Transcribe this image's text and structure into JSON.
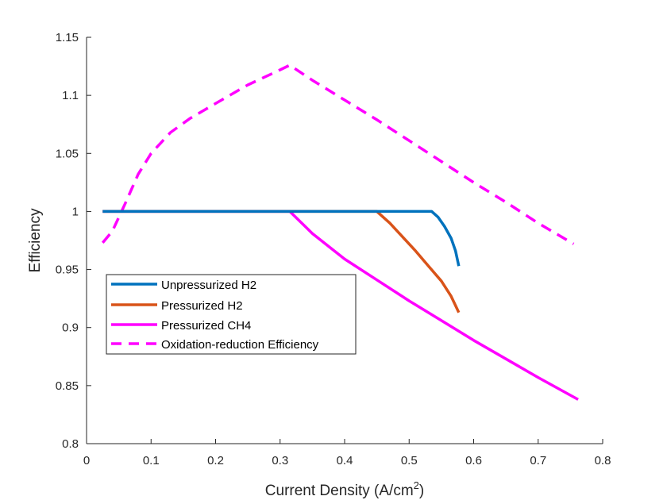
{
  "chart_data": {
    "type": "line",
    "title": "",
    "xlabel_main": "Current Density (A/cm",
    "xlabel_sup": "2",
    "xlabel_close": ")",
    "ylabel": "Efficiency",
    "xlim": [
      0,
      0.8
    ],
    "ylim": [
      0.8,
      1.15
    ],
    "x_ticks": [
      "0",
      "0.1",
      "0.2",
      "0.3",
      "0.4",
      "0.5",
      "0.6",
      "0.7",
      "0.8"
    ],
    "y_ticks": [
      "0.8",
      "0.85",
      "0.9",
      "0.95",
      "1",
      "1.05",
      "1.1",
      "1.15"
    ],
    "x_tick_values": [
      0,
      0.1,
      0.2,
      0.3,
      0.4,
      0.5,
      0.6,
      0.7,
      0.8
    ],
    "y_tick_values": [
      0.8,
      0.85,
      0.9,
      0.95,
      1.0,
      1.05,
      1.1,
      1.15
    ],
    "grid": false,
    "legend_position": "center-left",
    "series": [
      {
        "name": "Unpressurized H2",
        "color": "#0072BD",
        "dash": "solid",
        "points": [
          [
            0.025,
            1.0
          ],
          [
            0.535,
            1.0
          ],
          [
            0.545,
            0.995
          ],
          [
            0.555,
            0.987
          ],
          [
            0.565,
            0.977
          ],
          [
            0.572,
            0.966
          ],
          [
            0.577,
            0.953
          ]
        ]
      },
      {
        "name": "Pressurized H2",
        "color": "#D95319",
        "dash": "solid",
        "points": [
          [
            0.025,
            1.0
          ],
          [
            0.45,
            1.0
          ],
          [
            0.47,
            0.99
          ],
          [
            0.49,
            0.978
          ],
          [
            0.51,
            0.966
          ],
          [
            0.53,
            0.953
          ],
          [
            0.55,
            0.94
          ],
          [
            0.565,
            0.927
          ],
          [
            0.577,
            0.913
          ]
        ]
      },
      {
        "name": "Pressurized CH4",
        "color": "#FF00FF",
        "dash": "solid",
        "points": [
          [
            0.025,
            1.0
          ],
          [
            0.315,
            1.0
          ],
          [
            0.35,
            0.981
          ],
          [
            0.4,
            0.959
          ],
          [
            0.45,
            0.941
          ],
          [
            0.5,
            0.923
          ],
          [
            0.55,
            0.906
          ],
          [
            0.6,
            0.889
          ],
          [
            0.65,
            0.873
          ],
          [
            0.7,
            0.857
          ],
          [
            0.762,
            0.838
          ]
        ]
      },
      {
        "name": "Oxidation-reduction Efficiency",
        "color": "#FF00FF",
        "dash": "dashed",
        "points": [
          [
            0.025,
            0.973
          ],
          [
            0.04,
            0.983
          ],
          [
            0.06,
            1.007
          ],
          [
            0.08,
            1.032
          ],
          [
            0.1,
            1.05
          ],
          [
            0.13,
            1.068
          ],
          [
            0.16,
            1.08
          ],
          [
            0.2,
            1.093
          ],
          [
            0.25,
            1.109
          ],
          [
            0.3,
            1.122
          ],
          [
            0.315,
            1.126
          ],
          [
            0.35,
            1.113
          ],
          [
            0.4,
            1.096
          ],
          [
            0.45,
            1.079
          ],
          [
            0.5,
            1.061
          ],
          [
            0.55,
            1.043
          ],
          [
            0.6,
            1.025
          ],
          [
            0.65,
            1.008
          ],
          [
            0.7,
            0.99
          ],
          [
            0.755,
            0.972
          ]
        ]
      }
    ]
  }
}
